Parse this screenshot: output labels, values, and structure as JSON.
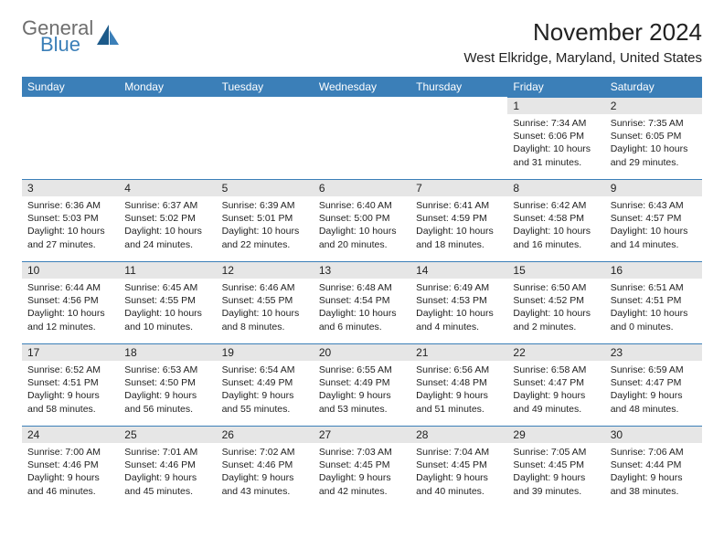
{
  "brand": {
    "word1": "General",
    "word2": "Blue"
  },
  "title": "November 2024",
  "location": "West Elkridge, Maryland, United States",
  "header_bg": "#3b7fb8",
  "daynum_bg": "#e6e6e6",
  "columns": [
    "Sunday",
    "Monday",
    "Tuesday",
    "Wednesday",
    "Thursday",
    "Friday",
    "Saturday"
  ],
  "weeks": [
    [
      null,
      null,
      null,
      null,
      null,
      {
        "n": "1",
        "sr": "7:34 AM",
        "ss": "6:06 PM",
        "dl": "10 hours and 31 minutes."
      },
      {
        "n": "2",
        "sr": "7:35 AM",
        "ss": "6:05 PM",
        "dl": "10 hours and 29 minutes."
      }
    ],
    [
      {
        "n": "3",
        "sr": "6:36 AM",
        "ss": "5:03 PM",
        "dl": "10 hours and 27 minutes."
      },
      {
        "n": "4",
        "sr": "6:37 AM",
        "ss": "5:02 PM",
        "dl": "10 hours and 24 minutes."
      },
      {
        "n": "5",
        "sr": "6:39 AM",
        "ss": "5:01 PM",
        "dl": "10 hours and 22 minutes."
      },
      {
        "n": "6",
        "sr": "6:40 AM",
        "ss": "5:00 PM",
        "dl": "10 hours and 20 minutes."
      },
      {
        "n": "7",
        "sr": "6:41 AM",
        "ss": "4:59 PM",
        "dl": "10 hours and 18 minutes."
      },
      {
        "n": "8",
        "sr": "6:42 AM",
        "ss": "4:58 PM",
        "dl": "10 hours and 16 minutes."
      },
      {
        "n": "9",
        "sr": "6:43 AM",
        "ss": "4:57 PM",
        "dl": "10 hours and 14 minutes."
      }
    ],
    [
      {
        "n": "10",
        "sr": "6:44 AM",
        "ss": "4:56 PM",
        "dl": "10 hours and 12 minutes."
      },
      {
        "n": "11",
        "sr": "6:45 AM",
        "ss": "4:55 PM",
        "dl": "10 hours and 10 minutes."
      },
      {
        "n": "12",
        "sr": "6:46 AM",
        "ss": "4:55 PM",
        "dl": "10 hours and 8 minutes."
      },
      {
        "n": "13",
        "sr": "6:48 AM",
        "ss": "4:54 PM",
        "dl": "10 hours and 6 minutes."
      },
      {
        "n": "14",
        "sr": "6:49 AM",
        "ss": "4:53 PM",
        "dl": "10 hours and 4 minutes."
      },
      {
        "n": "15",
        "sr": "6:50 AM",
        "ss": "4:52 PM",
        "dl": "10 hours and 2 minutes."
      },
      {
        "n": "16",
        "sr": "6:51 AM",
        "ss": "4:51 PM",
        "dl": "10 hours and 0 minutes."
      }
    ],
    [
      {
        "n": "17",
        "sr": "6:52 AM",
        "ss": "4:51 PM",
        "dl": "9 hours and 58 minutes."
      },
      {
        "n": "18",
        "sr": "6:53 AM",
        "ss": "4:50 PM",
        "dl": "9 hours and 56 minutes."
      },
      {
        "n": "19",
        "sr": "6:54 AM",
        "ss": "4:49 PM",
        "dl": "9 hours and 55 minutes."
      },
      {
        "n": "20",
        "sr": "6:55 AM",
        "ss": "4:49 PM",
        "dl": "9 hours and 53 minutes."
      },
      {
        "n": "21",
        "sr": "6:56 AM",
        "ss": "4:48 PM",
        "dl": "9 hours and 51 minutes."
      },
      {
        "n": "22",
        "sr": "6:58 AM",
        "ss": "4:47 PM",
        "dl": "9 hours and 49 minutes."
      },
      {
        "n": "23",
        "sr": "6:59 AM",
        "ss": "4:47 PM",
        "dl": "9 hours and 48 minutes."
      }
    ],
    [
      {
        "n": "24",
        "sr": "7:00 AM",
        "ss": "4:46 PM",
        "dl": "9 hours and 46 minutes."
      },
      {
        "n": "25",
        "sr": "7:01 AM",
        "ss": "4:46 PM",
        "dl": "9 hours and 45 minutes."
      },
      {
        "n": "26",
        "sr": "7:02 AM",
        "ss": "4:46 PM",
        "dl": "9 hours and 43 minutes."
      },
      {
        "n": "27",
        "sr": "7:03 AM",
        "ss": "4:45 PM",
        "dl": "9 hours and 42 minutes."
      },
      {
        "n": "28",
        "sr": "7:04 AM",
        "ss": "4:45 PM",
        "dl": "9 hours and 40 minutes."
      },
      {
        "n": "29",
        "sr": "7:05 AM",
        "ss": "4:45 PM",
        "dl": "9 hours and 39 minutes."
      },
      {
        "n": "30",
        "sr": "7:06 AM",
        "ss": "4:44 PM",
        "dl": "9 hours and 38 minutes."
      }
    ]
  ]
}
